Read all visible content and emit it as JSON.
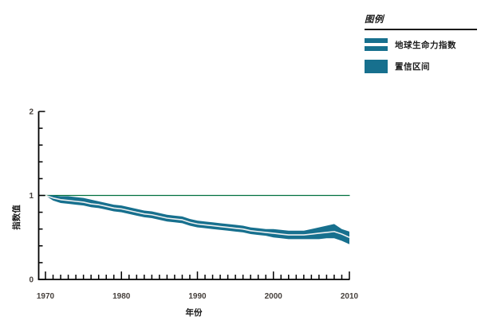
{
  "legend": {
    "title": "图例",
    "items": [
      {
        "label": "地球生命力指数",
        "swatch": "line-band-swatch"
      },
      {
        "label": "置信区间",
        "swatch": "solid-band-swatch"
      }
    ]
  },
  "chart_data": {
    "type": "line",
    "title": "",
    "xlabel": "年份",
    "ylabel": "指数值",
    "xlim": [
      1969,
      2010
    ],
    "ylim": [
      0,
      2
    ],
    "x_major_ticks": [
      1970,
      1980,
      1990,
      2000,
      2010
    ],
    "x_minor_step": 1,
    "y_major_ticks": [
      0,
      1,
      2
    ],
    "y_minor_step": 0.2,
    "grid": false,
    "legend_position": "top-right",
    "reference_line": {
      "y": 1.0
    },
    "colors": {
      "band": "#17708E",
      "center_line": "#F1F1F1",
      "reference_line": "#00703F",
      "axis": "#000000",
      "tick_label": "#46403C",
      "axis_label": "#1A1A1A"
    },
    "x": [
      1970,
      1971,
      1972,
      1973,
      1974,
      1975,
      1976,
      1977,
      1978,
      1979,
      1980,
      1981,
      1982,
      1983,
      1984,
      1985,
      1986,
      1987,
      1988,
      1989,
      1990,
      1991,
      1992,
      1993,
      1994,
      1995,
      1996,
      1997,
      1998,
      1999,
      2000,
      2001,
      2002,
      2003,
      2004,
      2005,
      2006,
      2007,
      2008,
      2009,
      2010
    ],
    "series": [
      {
        "name": "地球生命力指数",
        "type": "line",
        "values": [
          1.0,
          0.97,
          0.95,
          0.94,
          0.93,
          0.92,
          0.9,
          0.89,
          0.87,
          0.85,
          0.84,
          0.82,
          0.8,
          0.78,
          0.77,
          0.75,
          0.73,
          0.72,
          0.71,
          0.68,
          0.66,
          0.65,
          0.64,
          0.63,
          0.62,
          0.61,
          0.6,
          0.58,
          0.57,
          0.56,
          0.55,
          0.54,
          0.53,
          0.53,
          0.53,
          0.54,
          0.55,
          0.56,
          0.57,
          0.54,
          0.5
        ]
      },
      {
        "name": "置信区间",
        "type": "band",
        "upper": [
          1.0,
          1.0,
          0.99,
          0.99,
          0.98,
          0.97,
          0.95,
          0.93,
          0.91,
          0.89,
          0.88,
          0.86,
          0.84,
          0.82,
          0.81,
          0.79,
          0.77,
          0.76,
          0.75,
          0.72,
          0.7,
          0.69,
          0.68,
          0.67,
          0.66,
          0.65,
          0.64,
          0.62,
          0.61,
          0.6,
          0.6,
          0.59,
          0.58,
          0.58,
          0.58,
          0.6,
          0.62,
          0.64,
          0.66,
          0.6,
          0.57
        ],
        "lower": [
          1.0,
          0.94,
          0.91,
          0.9,
          0.89,
          0.88,
          0.86,
          0.85,
          0.83,
          0.81,
          0.8,
          0.78,
          0.76,
          0.74,
          0.73,
          0.71,
          0.69,
          0.68,
          0.67,
          0.64,
          0.62,
          0.61,
          0.6,
          0.59,
          0.58,
          0.57,
          0.56,
          0.54,
          0.53,
          0.52,
          0.5,
          0.49,
          0.48,
          0.48,
          0.48,
          0.48,
          0.48,
          0.49,
          0.49,
          0.46,
          0.42
        ]
      }
    ]
  }
}
